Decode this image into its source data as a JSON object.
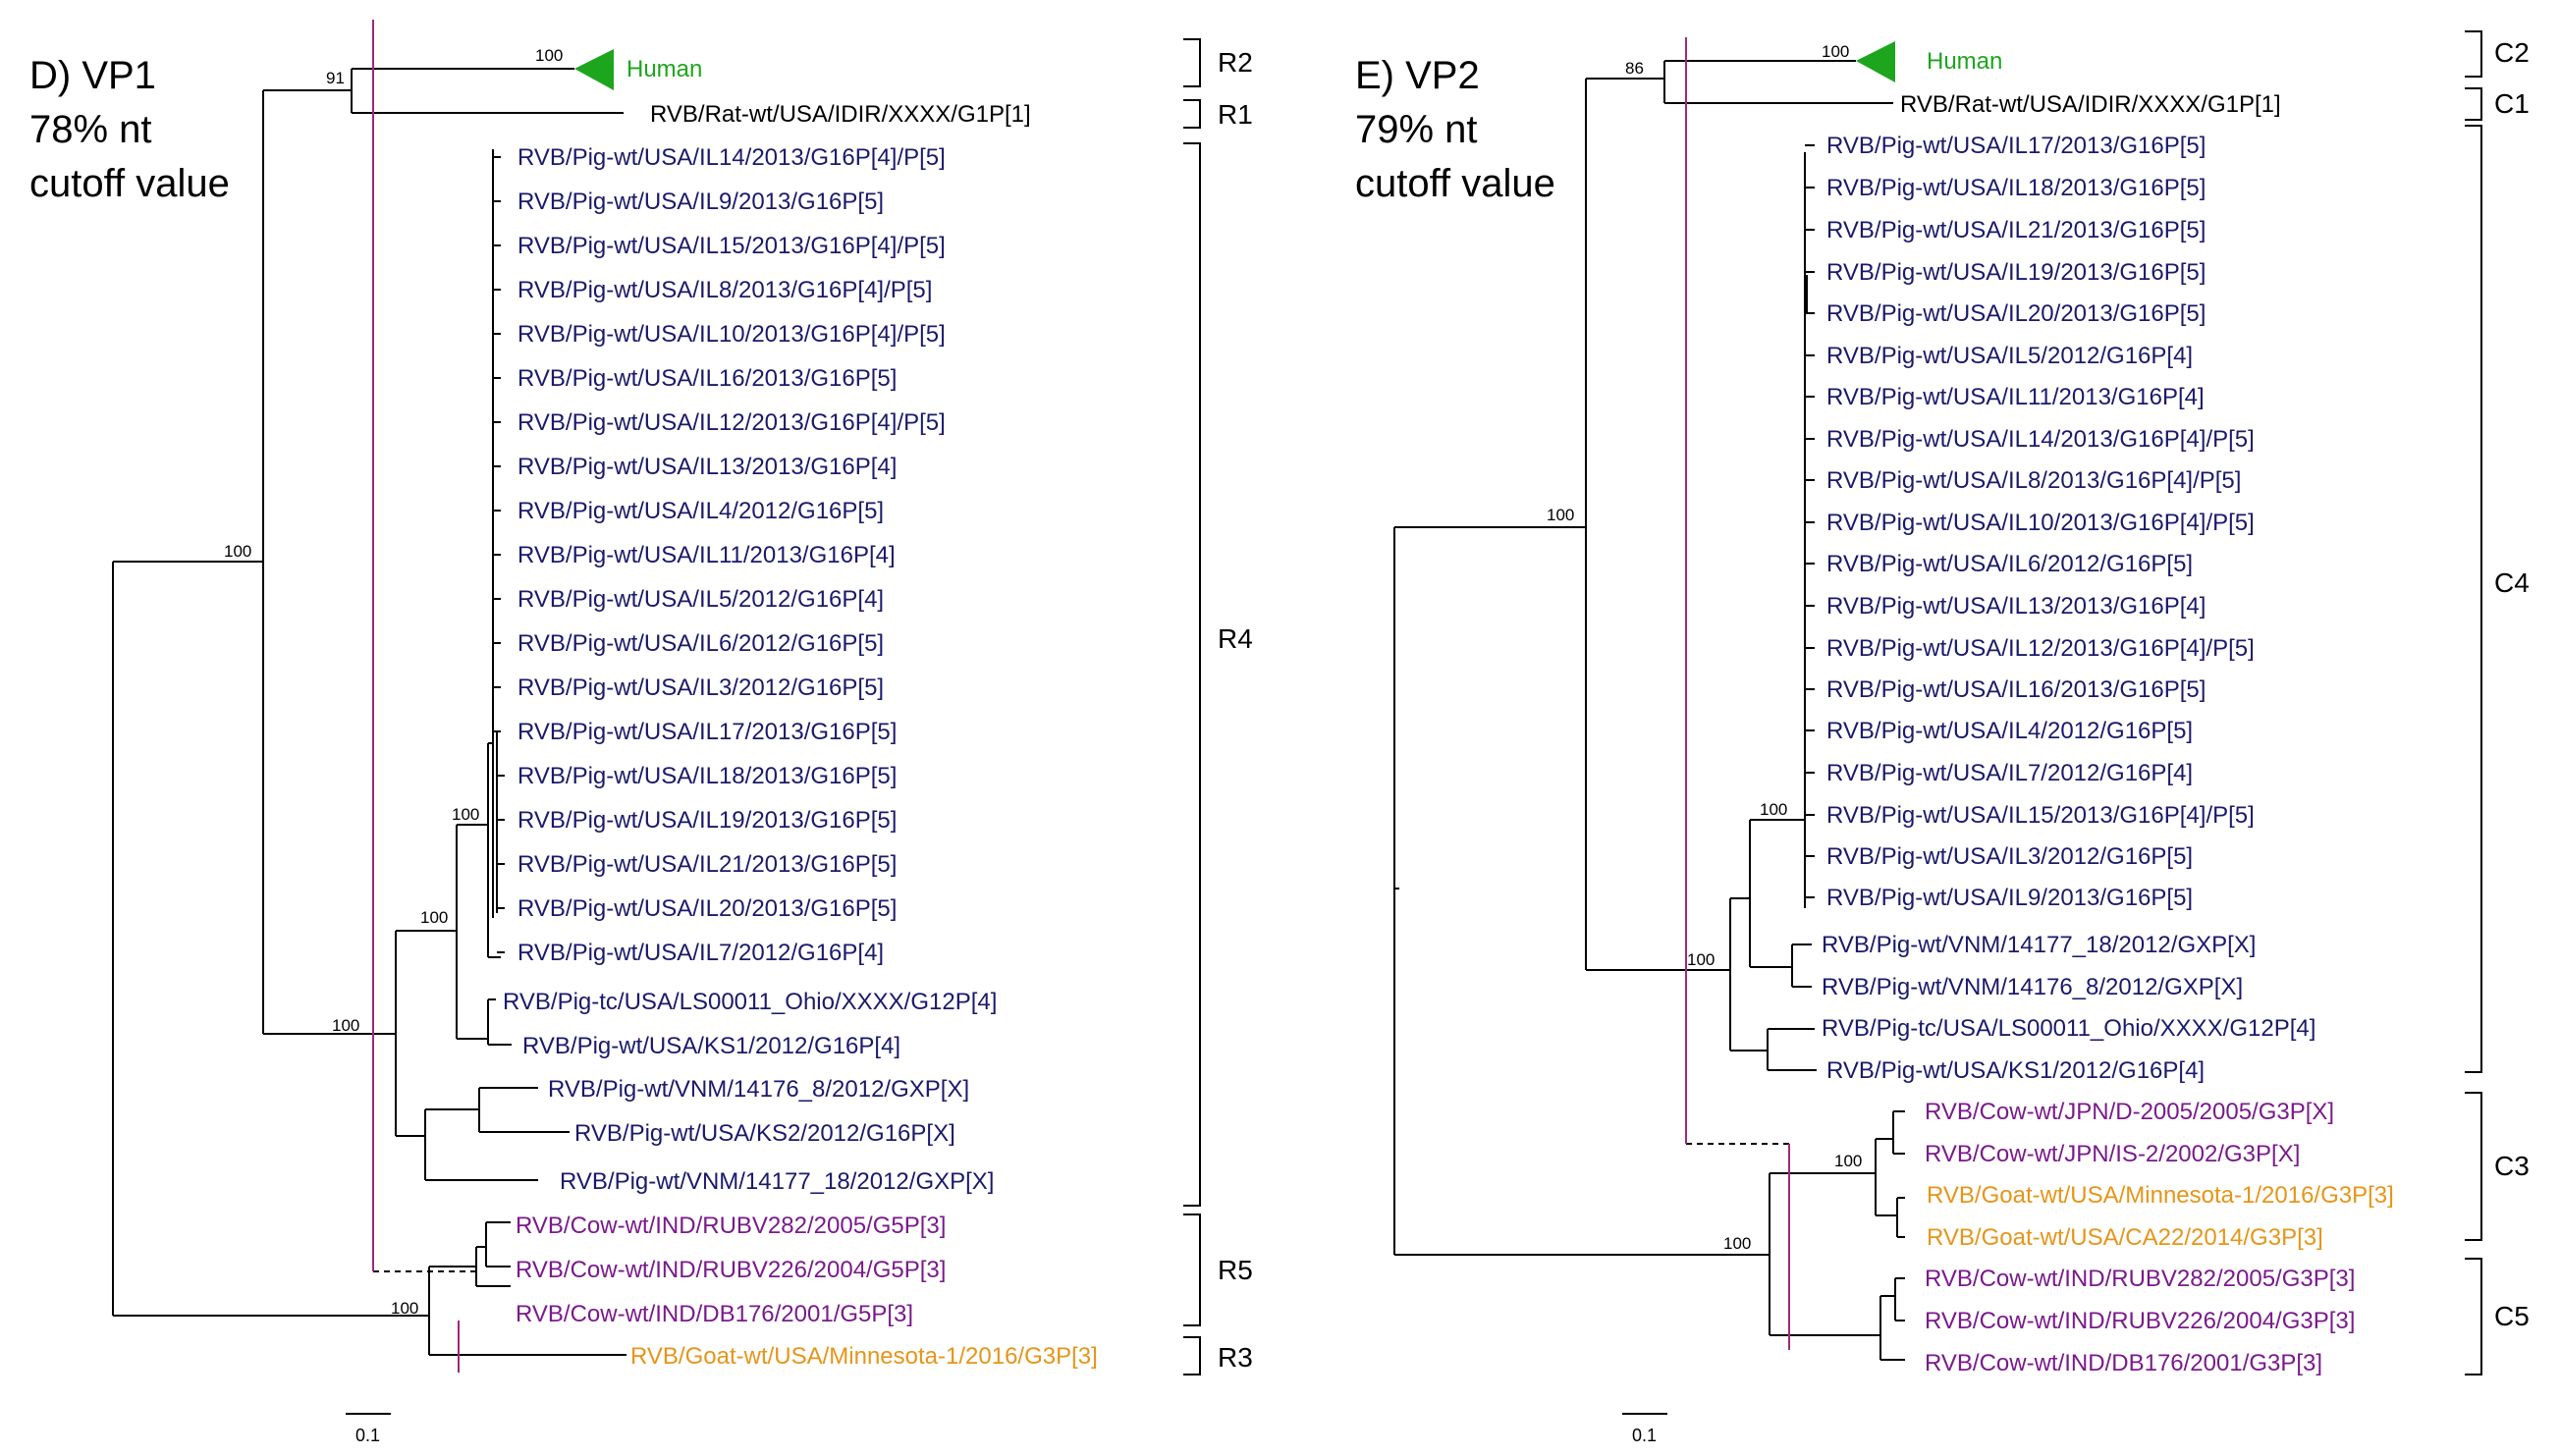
{
  "colors": {
    "pig": "#1a1a6b",
    "rat": "#000000",
    "cow": "#7a1a8c",
    "goat": "#e69518",
    "human": "#1ea51e",
    "cutoff_line": "#a0287c"
  },
  "panels": {
    "vp1": {
      "title": "D) VP1",
      "subtitle_1": "78% nt",
      "subtitle_2": "cutoff value",
      "scale_label": "0.1",
      "human_label": "Human",
      "taxa": [
        {
          "label": "RVB/Rat-wt/USA/IDIR/XXXX/G1P[1]",
          "host": "rat"
        },
        {
          "label": "RVB/Pig-wt/USA/IL14/2013/G16P[4]/P[5]",
          "host": "pig"
        },
        {
          "label": "RVB/Pig-wt/USA/IL9/2013/G16P[5]",
          "host": "pig"
        },
        {
          "label": "RVB/Pig-wt/USA/IL15/2013/G16P[4]/P[5]",
          "host": "pig"
        },
        {
          "label": "RVB/Pig-wt/USA/IL8/2013/G16P[4]/P[5]",
          "host": "pig"
        },
        {
          "label": "RVB/Pig-wt/USA/IL10/2013/G16P[4]/P[5]",
          "host": "pig"
        },
        {
          "label": "RVB/Pig-wt/USA/IL16/2013/G16P[5]",
          "host": "pig"
        },
        {
          "label": "RVB/Pig-wt/USA/IL12/2013/G16P[4]/P[5]",
          "host": "pig"
        },
        {
          "label": "RVB/Pig-wt/USA/IL13/2013/G16P[4]",
          "host": "pig"
        },
        {
          "label": "RVB/Pig-wt/USA/IL4/2012/G16P[5]",
          "host": "pig"
        },
        {
          "label": "RVB/Pig-wt/USA/IL11/2013/G16P[4]",
          "host": "pig"
        },
        {
          "label": "RVB/Pig-wt/USA/IL5/2012/G16P[4]",
          "host": "pig"
        },
        {
          "label": "RVB/Pig-wt/USA/IL6/2012/G16P[5]",
          "host": "pig"
        },
        {
          "label": "RVB/Pig-wt/USA/IL3/2012/G16P[5]",
          "host": "pig"
        },
        {
          "label": "RVB/Pig-wt/USA/IL17/2013/G16P[5]",
          "host": "pig"
        },
        {
          "label": "RVB/Pig-wt/USA/IL18/2013/G16P[5]",
          "host": "pig"
        },
        {
          "label": "RVB/Pig-wt/USA/IL19/2013/G16P[5]",
          "host": "pig"
        },
        {
          "label": "RVB/Pig-wt/USA/IL21/2013/G16P[5]",
          "host": "pig"
        },
        {
          "label": "RVB/Pig-wt/USA/IL20/2013/G16P[5]",
          "host": "pig"
        },
        {
          "label": "RVB/Pig-wt/USA/IL7/2012/G16P[4]",
          "host": "pig"
        },
        {
          "label": "RVB/Pig-tc/USA/LS00011_Ohio/XXXX/G12P[4]",
          "host": "pig"
        },
        {
          "label": "RVB/Pig-wt/USA/KS1/2012/G16P[4]",
          "host": "pig"
        },
        {
          "label": "RVB/Pig-wt/VNM/14176_8/2012/GXP[X]",
          "host": "pig"
        },
        {
          "label": "RVB/Pig-wt/USA/KS2/2012/G16P[X]",
          "host": "pig"
        },
        {
          "label": "RVB/Pig-wt/VNM/14177_18/2012/GXP[X]",
          "host": "pig"
        },
        {
          "label": "RVB/Cow-wt/IND/RUBV282/2005/G5P[3]",
          "host": "cow"
        },
        {
          "label": "RVB/Cow-wt/IND/RUBV226/2004/G5P[3]",
          "host": "cow"
        },
        {
          "label": "RVB/Cow-wt/IND/DB176/2001/G5P[3]",
          "host": "cow"
        },
        {
          "label": "RVB/Goat-wt/USA/Minnesota-1/2016/G3P[3]",
          "host": "goat"
        }
      ],
      "bootstraps": [
        "91",
        "100",
        "100",
        "100",
        "100",
        "100",
        "100"
      ],
      "clades": [
        "R2",
        "R1",
        "R4",
        "R5",
        "R3"
      ]
    },
    "vp2": {
      "title": "E) VP2",
      "subtitle_1": "79% nt",
      "subtitle_2": "cutoff value",
      "scale_label": "0.1",
      "human_label": "Human",
      "taxa": [
        {
          "label": "RVB/Rat-wt/USA/IDIR/XXXX/G1P[1]",
          "host": "rat"
        },
        {
          "label": "RVB/Pig-wt/USA/IL17/2013/G16P[5]",
          "host": "pig"
        },
        {
          "label": "RVB/Pig-wt/USA/IL18/2013/G16P[5]",
          "host": "pig"
        },
        {
          "label": "RVB/Pig-wt/USA/IL21/2013/G16P[5]",
          "host": "pig"
        },
        {
          "label": "RVB/Pig-wt/USA/IL19/2013/G16P[5]",
          "host": "pig"
        },
        {
          "label": "RVB/Pig-wt/USA/IL20/2013/G16P[5]",
          "host": "pig"
        },
        {
          "label": "RVB/Pig-wt/USA/IL5/2012/G16P[4]",
          "host": "pig"
        },
        {
          "label": "RVB/Pig-wt/USA/IL11/2013/G16P[4]",
          "host": "pig"
        },
        {
          "label": "RVB/Pig-wt/USA/IL14/2013/G16P[4]/P[5]",
          "host": "pig"
        },
        {
          "label": "RVB/Pig-wt/USA/IL8/2013/G16P[4]/P[5]",
          "host": "pig"
        },
        {
          "label": "RVB/Pig-wt/USA/IL10/2013/G16P[4]/P[5]",
          "host": "pig"
        },
        {
          "label": "RVB/Pig-wt/USA/IL6/2012/G16P[5]",
          "host": "pig"
        },
        {
          "label": "RVB/Pig-wt/USA/IL13/2013/G16P[4]",
          "host": "pig"
        },
        {
          "label": "RVB/Pig-wt/USA/IL12/2013/G16P[4]/P[5]",
          "host": "pig"
        },
        {
          "label": "RVB/Pig-wt/USA/IL16/2013/G16P[5]",
          "host": "pig"
        },
        {
          "label": "RVB/Pig-wt/USA/IL4/2012/G16P[5]",
          "host": "pig"
        },
        {
          "label": "RVB/Pig-wt/USA/IL7/2012/G16P[4]",
          "host": "pig"
        },
        {
          "label": "RVB/Pig-wt/USA/IL15/2013/G16P[4]/P[5]",
          "host": "pig"
        },
        {
          "label": "RVB/Pig-wt/USA/IL3/2012/G16P[5]",
          "host": "pig"
        },
        {
          "label": "RVB/Pig-wt/USA/IL9/2013/G16P[5]",
          "host": "pig"
        },
        {
          "label": "RVB/Pig-wt/VNM/14177_18/2012/GXP[X]",
          "host": "pig"
        },
        {
          "label": "RVB/Pig-wt/VNM/14176_8/2012/GXP[X]",
          "host": "pig"
        },
        {
          "label": "RVB/Pig-tc/USA/LS00011_Ohio/XXXX/G12P[4]",
          "host": "pig"
        },
        {
          "label": "RVB/Pig-wt/USA/KS1/2012/G16P[4]",
          "host": "pig"
        },
        {
          "label": "RVB/Cow-wt/JPN/D-2005/2005/G3P[X]",
          "host": "cow"
        },
        {
          "label": "RVB/Cow-wt/JPN/IS-2/2002/G3P[X]",
          "host": "cow"
        },
        {
          "label": "RVB/Goat-wt/USA/Minnesota-1/2016/G3P[3]",
          "host": "goat"
        },
        {
          "label": "RVB/Goat-wt/USA/CA22/2014/G3P[3]",
          "host": "goat"
        },
        {
          "label": "RVB/Cow-wt/IND/RUBV282/2005/G3P[3]",
          "host": "cow"
        },
        {
          "label": "RVB/Cow-wt/IND/RUBV226/2004/G3P[3]",
          "host": "cow"
        },
        {
          "label": "RVB/Cow-wt/IND/DB176/2001/G3P[3]",
          "host": "cow"
        }
      ],
      "bootstraps": [
        "86",
        "100",
        "100",
        "100",
        "100",
        "100",
        "100"
      ],
      "clades": [
        "C2",
        "C1",
        "C4",
        "C3",
        "C5"
      ]
    }
  }
}
